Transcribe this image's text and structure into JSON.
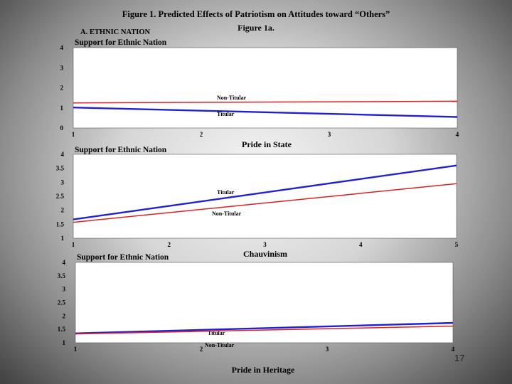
{
  "figure": {
    "title": "Figure 1.  Predicted Effects of Patriotism on Attitudes toward “Others”",
    "subtitle": "Figure 1a.",
    "section_label": "A.  ETHNIC NATION"
  },
  "page_number": "17",
  "colors": {
    "titular": "#1f1fd6",
    "non_titular": "#e02020",
    "plot_bg": "#ffffff"
  },
  "chart_data": [
    {
      "type": "line",
      "title": "Support for Ethnic Nation",
      "ylabel": "Support for Ethnic Nation",
      "xlabel": "Pride in State",
      "x_ticks": [
        "1",
        "2",
        "3",
        "4"
      ],
      "y_ticks": [
        "0",
        "1",
        "2",
        "3",
        "4"
      ],
      "xlim": [
        1,
        4
      ],
      "ylim": [
        0,
        4
      ],
      "series": [
        {
          "name": "Non-Titular",
          "label": "Non-Titular",
          "x": [
            1,
            4
          ],
          "y": [
            1.25,
            1.33
          ]
        },
        {
          "name": "Titular",
          "label": "Titular",
          "x": [
            1,
            4
          ],
          "y": [
            1.02,
            0.55
          ]
        }
      ]
    },
    {
      "type": "line",
      "title": "Support for Ethnic Nation",
      "ylabel": "Support for Ethnic Nation",
      "xlabel": "Chauvinism",
      "x_ticks": [
        "1",
        "2",
        "3",
        "4",
        "5"
      ],
      "y_ticks": [
        "1",
        "1.5",
        "2",
        "2.5",
        "3",
        "3.5",
        "4"
      ],
      "xlim": [
        1,
        5
      ],
      "ylim": [
        1,
        4
      ],
      "series": [
        {
          "name": "Titular",
          "label": "Titular",
          "x": [
            1,
            5
          ],
          "y": [
            1.67,
            3.6
          ]
        },
        {
          "name": "Non-Titular",
          "label": "Non-Titular",
          "x": [
            1,
            5
          ],
          "y": [
            1.57,
            2.95
          ]
        }
      ]
    },
    {
      "type": "line",
      "title": "Support for Ethnic Nation",
      "ylabel": "Support for Ethnic Nation",
      "xlabel": "Pride in Heritage",
      "x_ticks": [
        "1",
        "2",
        "3",
        "4"
      ],
      "y_ticks": [
        "1",
        "1.5",
        "2",
        "2.5",
        "3",
        "3.5",
        "4"
      ],
      "xlim": [
        1,
        4
      ],
      "ylim": [
        1,
        4
      ],
      "series": [
        {
          "name": "Titular",
          "label": "Titular",
          "x": [
            1,
            4
          ],
          "y": [
            1.35,
            1.74
          ]
        },
        {
          "name": "Non-Titular",
          "label": "Non-Titular",
          "x": [
            1,
            4
          ],
          "y": [
            1.33,
            1.62
          ]
        }
      ]
    }
  ]
}
